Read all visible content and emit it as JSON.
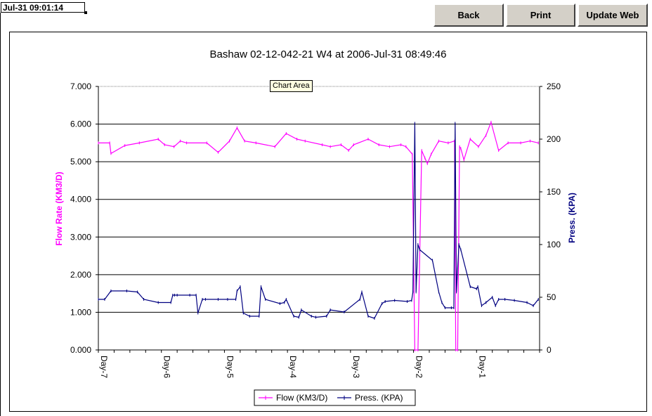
{
  "header": {
    "timestamp": "Jul-31 09:01:14",
    "back_label": "Back",
    "print_label": "Print",
    "update_label": "Update Web"
  },
  "tooltip": "Chart Area",
  "colors": {
    "flow": "#ff00ff",
    "pressure": "#000080",
    "grid": "#000000",
    "button_face": "#d4d0c8"
  },
  "chart_data": {
    "type": "line",
    "title": "Bashaw 02-12-042-21 W4 at 2006-Jul-31 08:49:46",
    "ylabel_left": "Flow Rate (KM3/D)",
    "ylabel_right": "Press. (KPA)",
    "y_left_lim": [
      0,
      7
    ],
    "y_left_ticks": [
      "0.000",
      "1.000",
      "2.000",
      "3.000",
      "4.000",
      "5.000",
      "6.000",
      "7.000"
    ],
    "y_right_lim": [
      0,
      250
    ],
    "y_right_ticks": [
      "0",
      "50",
      "100",
      "150",
      "200",
      "250"
    ],
    "x_lim": [
      -7,
      0
    ],
    "x_ticks": [
      "Day-7",
      "Day-6",
      "Day-5",
      "Day-4",
      "Day-3",
      "Day-2",
      "Day-1"
    ],
    "grid": "horizontal major gridlines",
    "legend_position": "bottom",
    "series": [
      {
        "name": "Flow (KM3/D)",
        "axis": "left",
        "x": [
          -7,
          -6.82,
          -6.8,
          -6.58,
          -6.35,
          -6.05,
          -5.95,
          -5.8,
          -5.7,
          -5.6,
          -5.28,
          -5.1,
          -4.92,
          -4.8,
          -4.68,
          -4.5,
          -4.2,
          -4.02,
          -3.85,
          -3.72,
          -3.45,
          -3.32,
          -3.15,
          -3.03,
          -2.95,
          -2.72,
          -2.55,
          -2.38,
          -2.2,
          -2.12,
          -2.02,
          -1.98,
          -1.93,
          -1.87,
          -1.82,
          -1.78,
          -1.72,
          -1.6,
          -1.45,
          -1.35,
          -1.33,
          -1.3,
          -1.27,
          -1.25,
          -1.2,
          -1.1,
          -0.97,
          -0.85,
          -0.77,
          -0.65,
          -0.5,
          -0.3,
          -0.15,
          -0.02
        ],
        "y": [
          5.5,
          5.5,
          5.22,
          5.43,
          5.5,
          5.6,
          5.45,
          5.4,
          5.55,
          5.5,
          5.5,
          5.25,
          5.55,
          5.9,
          5.55,
          5.5,
          5.4,
          5.75,
          5.6,
          5.55,
          5.45,
          5.4,
          5.45,
          5.3,
          5.45,
          5.6,
          5.45,
          5.4,
          5.45,
          5.4,
          5.2,
          0,
          0,
          5.3,
          5.1,
          4.95,
          5.2,
          5.55,
          5.5,
          5.55,
          0,
          0,
          5.4,
          5.35,
          5.05,
          5.6,
          5.4,
          5.7,
          6.05,
          5.3,
          5.5,
          5.5,
          5.55,
          5.5
        ]
      },
      {
        "name": "Press. (KPA)",
        "axis": "right",
        "x": [
          -7,
          -6.9,
          -6.8,
          -6.55,
          -6.38,
          -6.28,
          -6.05,
          -5.85,
          -5.82,
          -5.79,
          -5.75,
          -5.55,
          -5.45,
          -5.42,
          -5.35,
          -5.3,
          -5.1,
          -4.95,
          -4.82,
          -4.8,
          -4.75,
          -4.7,
          -4.6,
          -4.45,
          -4.42,
          -4.35,
          -4.12,
          -4.05,
          -4.02,
          -3.9,
          -3.82,
          -3.78,
          -3.62,
          -3.55,
          -3.38,
          -3.32,
          -3.1,
          -2.85,
          -2.82,
          -2.72,
          -2.62,
          -2.5,
          -2.45,
          -2.3,
          -2.1,
          -2.03,
          -2.01,
          -1.98,
          -1.96,
          -1.93,
          -1.9,
          -1.7,
          -1.6,
          -1.55,
          -1.5,
          -1.4,
          -1.36,
          -1.34,
          -1.32,
          -1.28,
          -1.25,
          -1.1,
          -1.0,
          -0.98,
          -0.92,
          -0.85,
          -0.75,
          -0.7,
          -0.65,
          -0.55,
          -0.4,
          -0.2,
          -0.1,
          -0.02
        ],
        "y": [
          48,
          48,
          56,
          56,
          55,
          48,
          45,
          45,
          52,
          52,
          52,
          52,
          52,
          35,
          48,
          48,
          48,
          48,
          48,
          56,
          60,
          35,
          32,
          32,
          60,
          48,
          44,
          45,
          48,
          32,
          31,
          38,
          32,
          31,
          32,
          38,
          36,
          48,
          55,
          32,
          30,
          44,
          46,
          47,
          46,
          47,
          55,
          215,
          55,
          100,
          95,
          85,
          55,
          45,
          40,
          40,
          40,
          215,
          55,
          100,
          95,
          60,
          58,
          60,
          42,
          45,
          50,
          42,
          48,
          48,
          47,
          45,
          42,
          48
        ]
      }
    ]
  }
}
